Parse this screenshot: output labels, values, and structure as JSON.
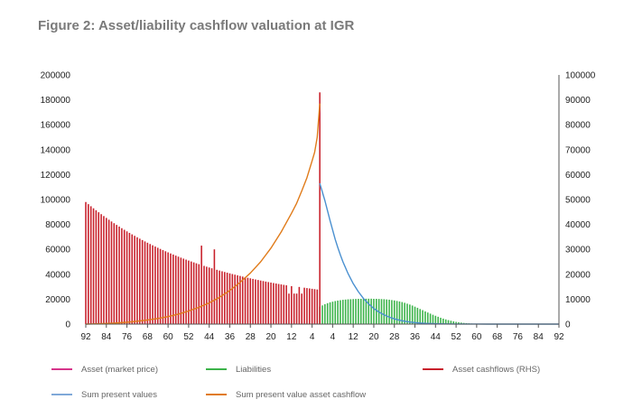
{
  "chart_data": {
    "type": "bar",
    "title": "Figure 2: Asset/liability cashflow valuation at IGR",
    "xlabel": "",
    "ylabel": "",
    "y2label": "",
    "ylim": [
      0,
      200000
    ],
    "y2lim": [
      0,
      100000
    ],
    "yticks": [
      0,
      20000,
      40000,
      60000,
      80000,
      100000,
      120000,
      140000,
      160000,
      180000,
      200000
    ],
    "y2ticks": [
      0,
      10000,
      20000,
      30000,
      40000,
      50000,
      60000,
      70000,
      80000,
      90000,
      100000
    ],
    "x_tick_labels": [
      "92",
      "84",
      "76",
      "68",
      "60",
      "52",
      "44",
      "36",
      "28",
      "20",
      "12",
      "4",
      "4",
      "12",
      "20",
      "28",
      "36",
      "44",
      "52",
      "60",
      "68",
      "76",
      "84",
      "92"
    ],
    "x_range": [
      -92,
      92
    ],
    "grid": false,
    "legend_position": "bottom",
    "colors": {
      "asset_market_price": "#d6348a",
      "liabilities": "#3cb34a",
      "asset_cashflows": "#c8202b",
      "sum_present_values": "#4a90d0",
      "sum_pv_asset_cashflow": "#e07b1a",
      "axis": "#555555",
      "title": "#7a7a7a"
    },
    "series": [
      {
        "name": "Asset (market price)",
        "type": "bar",
        "axis": "left",
        "values": []
      },
      {
        "name": "Liabilities",
        "type": "bar",
        "axis": "left",
        "x": [
          -1,
          0,
          1,
          2,
          3,
          4,
          5,
          6,
          7,
          8,
          9,
          10,
          11,
          12,
          13,
          14,
          15,
          16,
          17,
          18,
          19,
          20,
          21,
          22,
          23,
          24,
          25,
          26,
          27,
          28,
          29,
          30,
          31,
          32,
          33,
          34,
          35,
          36,
          37,
          38,
          39,
          40,
          41,
          42,
          43,
          44,
          45,
          46,
          47,
          48,
          49,
          50,
          51,
          52,
          53,
          54,
          55,
          56,
          57,
          58,
          59,
          60,
          61,
          62,
          63,
          64,
          65
        ],
        "values": [
          14000,
          15000,
          16000,
          16800,
          17500,
          18000,
          18500,
          18900,
          19200,
          19500,
          19700,
          19900,
          20000,
          20100,
          20200,
          20300,
          20300,
          20400,
          20400,
          20400,
          20400,
          20300,
          20300,
          20200,
          20100,
          20000,
          19800,
          19600,
          19300,
          19000,
          18600,
          18200,
          17700,
          17100,
          16400,
          15700,
          14900,
          14000,
          13100,
          12100,
          11200,
          10200,
          9300,
          8400,
          7500,
          6700,
          5900,
          5100,
          4400,
          3800,
          3200,
          2700,
          2200,
          1800,
          1500,
          1200,
          950,
          750,
          600,
          450,
          350,
          250,
          180,
          120,
          80,
          50,
          30
        ]
      },
      {
        "name": "Asset cashflows (RHS)",
        "type": "bar",
        "axis": "left",
        "x": [
          -92,
          -91,
          -90,
          -89,
          -88,
          -87,
          -86,
          -85,
          -84,
          -83,
          -82,
          -81,
          -80,
          -79,
          -78,
          -77,
          -76,
          -75,
          -74,
          -73,
          -72,
          -71,
          -70,
          -69,
          -68,
          -67,
          -66,
          -65,
          -64,
          -63,
          -62,
          -61,
          -60,
          -59,
          -58,
          -57,
          -56,
          -55,
          -54,
          -53,
          -52,
          -51,
          -50,
          -49,
          -48,
          -47,
          -46,
          -45,
          -44,
          -43,
          -42,
          -41,
          -40,
          -39,
          -38,
          -37,
          -36,
          -35,
          -34,
          -33,
          -32,
          -31,
          -30,
          -29,
          -28,
          -27,
          -26,
          -25,
          -24,
          -23,
          -22,
          -21,
          -20,
          -19,
          -18,
          -17,
          -16,
          -15,
          -14,
          -13,
          -12,
          -11,
          -10,
          -9,
          -8,
          -7,
          -6,
          -5,
          -4,
          -3,
          -2,
          -1
        ],
        "values": [
          98000,
          96286,
          94608,
          92965,
          91356,
          89780,
          88237,
          86726,
          85246,
          83797,
          82378,
          80989,
          79628,
          78295,
          76990,
          75711,
          74459,
          73233,
          72032,
          70855,
          69703,
          68574,
          67469,
          66386,
          65325,
          64286,
          63268,
          62271,
          61294,
          60337,
          59400,
          58481,
          57582,
          56700,
          55837,
          54991,
          54163,
          53351,
          52556,
          51778,
          51015,
          50267,
          49535,
          48817,
          48115,
          63000,
          46752,
          46092,
          45445,
          44811,
          60000,
          43585,
          42992,
          42410,
          41841,
          41283,
          40737,
          40201,
          39677,
          39163,
          38660,
          38166,
          37683,
          37209,
          36745,
          36290,
          35844,
          35408,
          34980,
          34561,
          34150,
          33748,
          33354,
          32968,
          32590,
          32219,
          31856,
          31501,
          31153,
          24500,
          30478,
          24500,
          24500,
          29833,
          24500,
          29220,
          28923,
          28632,
          28347,
          28067,
          27793,
          186000
        ]
      },
      {
        "name": "Sum present values",
        "type": "line",
        "axis": "left",
        "x": [
          -1,
          0,
          1,
          2,
          3,
          4,
          5,
          6,
          7,
          8,
          10,
          12,
          14,
          16,
          18,
          20,
          22,
          24,
          26,
          28,
          30,
          32,
          34,
          36,
          38,
          40,
          44,
          48,
          52,
          56,
          60,
          64,
          68,
          72,
          76,
          80,
          84,
          88,
          92
        ],
        "values": [
          113000,
          106000,
          99000,
          91000,
          83000,
          75500,
          68000,
          61500,
          55500,
          50000,
          40500,
          32500,
          26000,
          20500,
          16200,
          12500,
          9700,
          7400,
          5600,
          4200,
          3100,
          2300,
          1700,
          1200,
          850,
          600,
          300,
          150,
          80,
          40,
          20,
          10,
          5,
          3,
          2,
          1,
          1,
          0,
          0
        ]
      },
      {
        "name": "Sum present value asset cashflow",
        "type": "line",
        "axis": "left",
        "x": [
          -92,
          -88,
          -84,
          -80,
          -76,
          -72,
          -68,
          -64,
          -60,
          -56,
          -52,
          -48,
          -44,
          -40,
          -36,
          -32,
          -28,
          -24,
          -20,
          -16,
          -12,
          -10,
          -8,
          -6,
          -4,
          -3,
          -2,
          -1
        ],
        "values": [
          0,
          200,
          500,
          900,
          1500,
          2300,
          3300,
          4500,
          6000,
          8000,
          10500,
          13500,
          17000,
          21500,
          27000,
          33500,
          41000,
          50000,
          61000,
          74000,
          89000,
          97000,
          107000,
          117500,
          131000,
          138000,
          150000,
          177000
        ]
      }
    ]
  },
  "legend": {
    "items": [
      {
        "label": "Asset (market price)",
        "color": "#d6348a"
      },
      {
        "label": "Liabilities",
        "color": "#3cb34a"
      },
      {
        "label": "Asset cashflows (RHS)",
        "color": "#c8202b"
      },
      {
        "label": "Sum present values",
        "color": "#7fa8d8"
      },
      {
        "label": "Sum present value asset cashflow",
        "color": "#e07b1a"
      }
    ]
  }
}
